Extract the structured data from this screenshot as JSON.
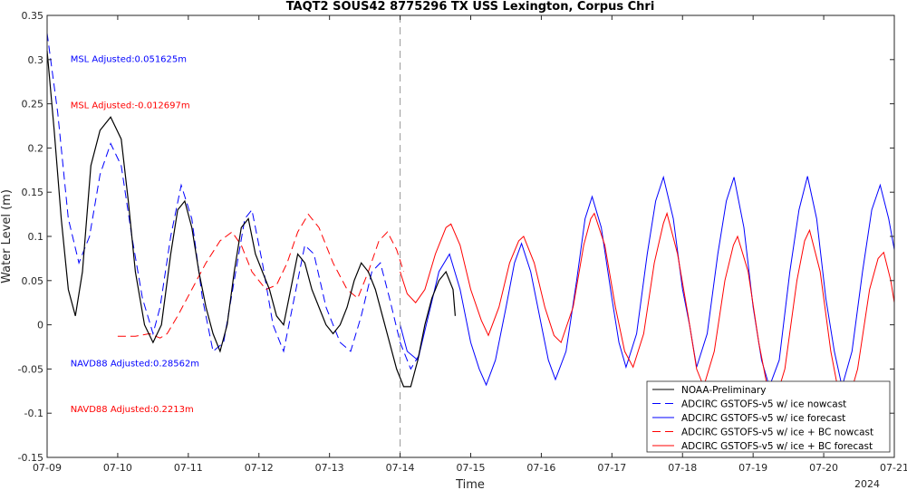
{
  "chart_data": {
    "type": "line",
    "title": "TAQT2 SOUS42 8775296 TX USS Lexington, Corpus Chri",
    "xlabel": "Time",
    "ylabel": "Water Level (m)",
    "x_year_label": "2024",
    "xlim": [
      0,
      12
    ],
    "ylim": [
      -0.15,
      0.35
    ],
    "x_tick_values": [
      0,
      1,
      2,
      3,
      4,
      5,
      6,
      7,
      8,
      9,
      10,
      11,
      12
    ],
    "x_tick_labels": [
      "07-09",
      "07-10",
      "07-11",
      "07-12",
      "07-13",
      "07-14",
      "07-15",
      "07-16",
      "07-17",
      "07-18",
      "07-19",
      "07-20",
      "07-21"
    ],
    "y_ticks": [
      -0.15,
      -0.1,
      -0.05,
      0,
      0.05,
      0.1,
      0.15,
      0.2,
      0.25,
      0.3,
      0.35
    ],
    "y_tick_labels": [
      "-0.15",
      "-0.1",
      "-0.05",
      "0",
      "0.05",
      "0.1",
      "0.15",
      "0.2",
      "0.25",
      "0.3",
      "0.35"
    ],
    "grid": false,
    "nowcast_forecast_divider_x": 5.0,
    "annotations": [
      {
        "text": "MSL Adjusted:0.051625m",
        "color": "#0000ff",
        "x": 0.33,
        "y": 0.297
      },
      {
        "text": "MSL Adjusted:-0.012697m",
        "color": "#ff0000",
        "x": 0.33,
        "y": 0.245
      },
      {
        "text": "NAVD88 Adjusted:0.28562m",
        "color": "#0000ff",
        "x": 0.33,
        "y": -0.047
      },
      {
        "text": "NAVD88 Adjusted:0.2213m",
        "color": "#ff0000",
        "x": 0.33,
        "y": -0.099
      }
    ],
    "legend_position": "bottom-right",
    "series": [
      {
        "name": "NOAA-Preliminary",
        "color": "#000000",
        "dash": "solid",
        "points": [
          [
            0.0,
            0.31
          ],
          [
            0.1,
            0.22
          ],
          [
            0.2,
            0.12
          ],
          [
            0.3,
            0.04
          ],
          [
            0.4,
            0.01
          ],
          [
            0.5,
            0.06
          ],
          [
            0.62,
            0.18
          ],
          [
            0.75,
            0.22
          ],
          [
            0.9,
            0.235
          ],
          [
            1.05,
            0.21
          ],
          [
            1.15,
            0.14
          ],
          [
            1.25,
            0.06
          ],
          [
            1.38,
            0.0
          ],
          [
            1.5,
            -0.02
          ],
          [
            1.62,
            0.0
          ],
          [
            1.75,
            0.08
          ],
          [
            1.85,
            0.13
          ],
          [
            1.95,
            0.14
          ],
          [
            2.05,
            0.11
          ],
          [
            2.15,
            0.06
          ],
          [
            2.25,
            0.02
          ],
          [
            2.35,
            -0.01
          ],
          [
            2.45,
            -0.03
          ],
          [
            2.55,
            0.0
          ],
          [
            2.65,
            0.06
          ],
          [
            2.75,
            0.11
          ],
          [
            2.85,
            0.12
          ],
          [
            2.95,
            0.08
          ],
          [
            3.05,
            0.06
          ],
          [
            3.15,
            0.04
          ],
          [
            3.25,
            0.01
          ],
          [
            3.35,
            0.0
          ],
          [
            3.45,
            0.04
          ],
          [
            3.55,
            0.08
          ],
          [
            3.65,
            0.07
          ],
          [
            3.75,
            0.04
          ],
          [
            3.85,
            0.02
          ],
          [
            3.95,
            0.0
          ],
          [
            4.05,
            -0.01
          ],
          [
            4.15,
            0.0
          ],
          [
            4.25,
            0.02
          ],
          [
            4.35,
            0.05
          ],
          [
            4.45,
            0.07
          ],
          [
            4.55,
            0.06
          ],
          [
            4.65,
            0.04
          ],
          [
            4.75,
            0.01
          ],
          [
            4.85,
            -0.02
          ],
          [
            4.95,
            -0.05
          ],
          [
            5.05,
            -0.07
          ],
          [
            5.15,
            -0.07
          ],
          [
            5.25,
            -0.04
          ],
          [
            5.35,
            0.0
          ],
          [
            5.45,
            0.03
          ],
          [
            5.55,
            0.05
          ],
          [
            5.65,
            0.06
          ],
          [
            5.75,
            0.04
          ],
          [
            5.78,
            0.01
          ]
        ]
      },
      {
        "name": "ADCIRC GSTOFS-v5 w/ ice nowcast",
        "color": "#0000ff",
        "dash": "dashed",
        "points": [
          [
            0.0,
            0.33
          ],
          [
            0.15,
            0.24
          ],
          [
            0.3,
            0.12
          ],
          [
            0.45,
            0.07
          ],
          [
            0.6,
            0.1
          ],
          [
            0.75,
            0.17
          ],
          [
            0.9,
            0.205
          ],
          [
            1.05,
            0.18
          ],
          [
            1.2,
            0.1
          ],
          [
            1.35,
            0.03
          ],
          [
            1.5,
            -0.01
          ],
          [
            1.6,
            0.02
          ],
          [
            1.75,
            0.1
          ],
          [
            1.9,
            0.158
          ],
          [
            2.05,
            0.12
          ],
          [
            2.2,
            0.03
          ],
          [
            2.35,
            -0.03
          ],
          [
            2.5,
            -0.02
          ],
          [
            2.65,
            0.05
          ],
          [
            2.8,
            0.12
          ],
          [
            2.9,
            0.13
          ],
          [
            3.05,
            0.07
          ],
          [
            3.2,
            0.0
          ],
          [
            3.35,
            -0.03
          ],
          [
            3.5,
            0.03
          ],
          [
            3.65,
            0.09
          ],
          [
            3.78,
            0.08
          ],
          [
            3.95,
            0.02
          ],
          [
            4.15,
            -0.02
          ],
          [
            4.3,
            -0.03
          ],
          [
            4.45,
            0.01
          ],
          [
            4.6,
            0.06
          ],
          [
            4.72,
            0.07
          ],
          [
            4.85,
            0.03
          ],
          [
            5.0,
            -0.02
          ],
          [
            5.15,
            -0.05
          ],
          [
            5.3,
            -0.03
          ]
        ]
      },
      {
        "name": "ADCIRC GSTOFS-v5 w/ ice forecast",
        "color": "#0000ff",
        "dash": "solid",
        "points": [
          [
            5.0,
            0.0
          ],
          [
            5.1,
            -0.03
          ],
          [
            5.25,
            -0.04
          ],
          [
            5.4,
            0.01
          ],
          [
            5.55,
            0.06
          ],
          [
            5.7,
            0.08
          ],
          [
            5.85,
            0.04
          ],
          [
            6.0,
            -0.02
          ],
          [
            6.12,
            -0.05
          ],
          [
            6.22,
            -0.068
          ],
          [
            6.35,
            -0.04
          ],
          [
            6.5,
            0.02
          ],
          [
            6.62,
            0.07
          ],
          [
            6.72,
            0.092
          ],
          [
            6.85,
            0.06
          ],
          [
            7.0,
            0.0
          ],
          [
            7.1,
            -0.04
          ],
          [
            7.2,
            -0.062
          ],
          [
            7.35,
            -0.03
          ],
          [
            7.5,
            0.05
          ],
          [
            7.62,
            0.12
          ],
          [
            7.72,
            0.145
          ],
          [
            7.85,
            0.11
          ],
          [
            8.0,
            0.03
          ],
          [
            8.1,
            -0.02
          ],
          [
            8.2,
            -0.048
          ],
          [
            8.35,
            -0.01
          ],
          [
            8.5,
            0.08
          ],
          [
            8.62,
            0.14
          ],
          [
            8.73,
            0.167
          ],
          [
            8.87,
            0.12
          ],
          [
            9.0,
            0.04
          ],
          [
            9.1,
            0.0
          ],
          [
            9.2,
            -0.048
          ],
          [
            9.35,
            -0.01
          ],
          [
            9.5,
            0.08
          ],
          [
            9.62,
            0.14
          ],
          [
            9.73,
            0.167
          ],
          [
            9.87,
            0.11
          ],
          [
            10.0,
            0.02
          ],
          [
            10.12,
            -0.04
          ],
          [
            10.23,
            -0.07
          ],
          [
            10.37,
            -0.04
          ],
          [
            10.52,
            0.06
          ],
          [
            10.65,
            0.13
          ],
          [
            10.77,
            0.168
          ],
          [
            10.9,
            0.12
          ],
          [
            11.03,
            0.03
          ],
          [
            11.15,
            -0.03
          ],
          [
            11.26,
            -0.07
          ],
          [
            11.4,
            -0.03
          ],
          [
            11.55,
            0.06
          ],
          [
            11.68,
            0.13
          ],
          [
            11.8,
            0.158
          ],
          [
            11.92,
            0.12
          ],
          [
            12.0,
            0.085
          ]
        ]
      },
      {
        "name": "ADCIRC GSTOFS-v5 w/ ice + BC nowcast",
        "color": "#ff0000",
        "dash": "dashed",
        "points": [
          [
            1.0,
            -0.013
          ],
          [
            1.25,
            -0.013
          ],
          [
            1.45,
            -0.01
          ],
          [
            1.6,
            -0.015
          ],
          [
            1.7,
            -0.01
          ],
          [
            1.85,
            0.01
          ],
          [
            2.05,
            0.04
          ],
          [
            2.25,
            0.07
          ],
          [
            2.45,
            0.095
          ],
          [
            2.62,
            0.105
          ],
          [
            2.75,
            0.09
          ],
          [
            2.9,
            0.06
          ],
          [
            3.1,
            0.04
          ],
          [
            3.25,
            0.045
          ],
          [
            3.4,
            0.07
          ],
          [
            3.55,
            0.105
          ],
          [
            3.7,
            0.125
          ],
          [
            3.85,
            0.11
          ],
          [
            4.05,
            0.07
          ],
          [
            4.25,
            0.04
          ],
          [
            4.4,
            0.03
          ],
          [
            4.55,
            0.06
          ],
          [
            4.7,
            0.095
          ],
          [
            4.82,
            0.105
          ],
          [
            4.95,
            0.085
          ],
          [
            5.05,
            0.06
          ]
        ]
      },
      {
        "name": "ADCIRC GSTOFS-v5 w/ ice + BC forecast",
        "color": "#ff0000",
        "dash": "solid",
        "points": [
          [
            5.0,
            0.06
          ],
          [
            5.1,
            0.035
          ],
          [
            5.22,
            0.025
          ],
          [
            5.35,
            0.04
          ],
          [
            5.5,
            0.08
          ],
          [
            5.65,
            0.11
          ],
          [
            5.72,
            0.114
          ],
          [
            5.85,
            0.09
          ],
          [
            6.0,
            0.04
          ],
          [
            6.15,
            0.005
          ],
          [
            6.25,
            -0.012
          ],
          [
            6.4,
            0.02
          ],
          [
            6.55,
            0.07
          ],
          [
            6.68,
            0.095
          ],
          [
            6.75,
            0.1
          ],
          [
            6.9,
            0.07
          ],
          [
            7.05,
            0.02
          ],
          [
            7.18,
            -0.012
          ],
          [
            7.28,
            -0.02
          ],
          [
            7.45,
            0.02
          ],
          [
            7.6,
            0.09
          ],
          [
            7.7,
            0.12
          ],
          [
            7.75,
            0.126
          ],
          [
            7.9,
            0.09
          ],
          [
            8.05,
            0.02
          ],
          [
            8.18,
            -0.03
          ],
          [
            8.3,
            -0.048
          ],
          [
            8.45,
            -0.01
          ],
          [
            8.6,
            0.07
          ],
          [
            8.73,
            0.115
          ],
          [
            8.78,
            0.126
          ],
          [
            8.93,
            0.08
          ],
          [
            9.08,
            0.01
          ],
          [
            9.2,
            -0.05
          ],
          [
            9.3,
            -0.07
          ],
          [
            9.45,
            -0.03
          ],
          [
            9.6,
            0.05
          ],
          [
            9.72,
            0.09
          ],
          [
            9.78,
            0.1
          ],
          [
            9.93,
            0.06
          ],
          [
            10.08,
            -0.02
          ],
          [
            10.2,
            -0.07
          ],
          [
            10.3,
            -0.09
          ],
          [
            10.45,
            -0.05
          ],
          [
            10.62,
            0.05
          ],
          [
            10.73,
            0.095
          ],
          [
            10.8,
            0.107
          ],
          [
            10.95,
            0.06
          ],
          [
            11.1,
            -0.03
          ],
          [
            11.22,
            -0.08
          ],
          [
            11.32,
            -0.095
          ],
          [
            11.48,
            -0.05
          ],
          [
            11.65,
            0.04
          ],
          [
            11.77,
            0.075
          ],
          [
            11.85,
            0.082
          ],
          [
            11.95,
            0.05
          ],
          [
            12.0,
            0.025
          ]
        ]
      }
    ]
  }
}
